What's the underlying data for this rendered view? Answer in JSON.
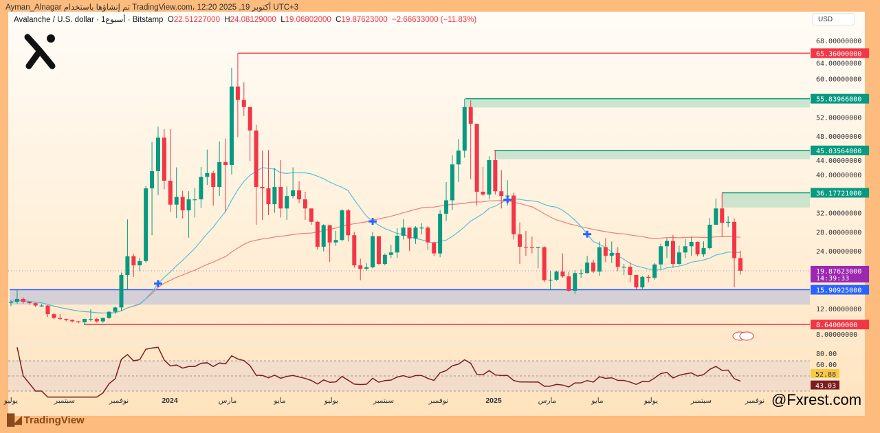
{
  "header": {
    "attribution": "Ayman_Alnagar تم إنشاؤها باستخدام TradingView.com، 12:20 2025 ,19 أكتوبر UTC+3"
  },
  "symbol": {
    "name": "Avalanche / U.S. dollar · 1أسبوع · Bitstamp",
    "o_label": "O",
    "o": "22.51227000",
    "h_label": "H",
    "h": "24.08129000",
    "l_label": "L",
    "l": "19.06802000",
    "c_label": "C",
    "c": "19.87623000",
    "change": "−2.66633000 (−11.83%)"
  },
  "currency": "USD",
  "watermark": "@Fxrest.com",
  "brand": "TradingView",
  "colors": {
    "up": "#089981",
    "down": "#F23645",
    "ma_fast": "#4FC3D9",
    "ma_slow": "#F07A7A",
    "rsi": "#7B1E22",
    "frame": "#FDBB7D"
  },
  "chart_data": {
    "type": "candlestick",
    "title": "Avalanche / U.S. dollar · 1W · Bitstamp",
    "ylim": [
      4,
      70
    ],
    "y_ticks": [
      "68.00000000",
      "64.00000000",
      "60.00000000",
      "52.00000000",
      "48.00000000",
      "44.00000000",
      "40.00000000",
      "32.00000000",
      "28.00000000",
      "24.00000000",
      "12.00000000",
      "8.00000000"
    ],
    "x_ticks": [
      "يوليو",
      "سبتمبر",
      "نوفمبر",
      "2024",
      "مارس",
      "مايو",
      "يوليو",
      "سبتمبر",
      "نوفمبر",
      "2025",
      "مارس",
      "مايو",
      "يوليو",
      "سبتمبر",
      "نوفمبر"
    ],
    "candles_ohlc": [
      [
        13.2,
        13.8,
        12.5,
        13.4
      ],
      [
        13.4,
        15.9,
        13.0,
        14.0
      ],
      [
        14.0,
        14.3,
        13.0,
        13.4
      ],
      [
        13.4,
        13.5,
        12.8,
        13.1
      ],
      [
        13.1,
        13.2,
        12.3,
        12.6
      ],
      [
        12.6,
        12.9,
        12.3,
        12.6
      ],
      [
        12.6,
        12.7,
        10.2,
        10.8
      ],
      [
        10.8,
        11.1,
        9.7,
        10.0
      ],
      [
        10.0,
        10.8,
        9.6,
        9.8
      ],
      [
        9.8,
        9.9,
        9.3,
        9.6
      ],
      [
        9.6,
        9.7,
        9.1,
        9.3
      ],
      [
        9.3,
        9.4,
        8.9,
        9.1
      ],
      [
        9.1,
        9.9,
        8.64,
        9.8
      ],
      [
        9.8,
        11.8,
        9.3,
        9.8
      ],
      [
        9.8,
        10.0,
        9.0,
        9.3
      ],
      [
        9.3,
        10.1,
        9.0,
        10.0
      ],
      [
        10.0,
        11.5,
        9.8,
        11.3
      ],
      [
        11.3,
        12.4,
        10.9,
        12.2
      ],
      [
        12.2,
        19.5,
        11.4,
        19.0
      ],
      [
        19.0,
        30.6,
        15.9,
        22.9
      ],
      [
        22.9,
        23.4,
        18.6,
        21.0
      ],
      [
        21.0,
        22.6,
        19.8,
        21.9
      ],
      [
        21.9,
        37.6,
        21.6,
        37.1
      ],
      [
        37.1,
        46.8,
        27.3,
        40.7
      ],
      [
        40.7,
        50.0,
        35.7,
        47.7
      ],
      [
        47.7,
        49.5,
        36.9,
        38.7
      ],
      [
        38.7,
        49.5,
        32.2,
        33.7
      ],
      [
        33.7,
        41.5,
        30.9,
        35.3
      ],
      [
        35.3,
        36.6,
        30.8,
        32.5
      ],
      [
        32.5,
        36.5,
        26.8,
        34.8
      ],
      [
        34.8,
        37.2,
        31.0,
        34.8
      ],
      [
        34.8,
        41.6,
        33.0,
        39.5
      ],
      [
        39.5,
        45.2,
        37.8,
        40.3
      ],
      [
        40.3,
        40.8,
        33.5,
        37.4
      ],
      [
        37.4,
        46.9,
        35.5,
        42.6
      ],
      [
        42.6,
        47.5,
        32.2,
        42.0
      ],
      [
        42.0,
        62.3,
        40.0,
        58.4
      ],
      [
        58.4,
        65.36,
        47.8,
        55.6
      ],
      [
        55.6,
        59.3,
        52.2,
        54.1
      ],
      [
        54.1,
        53.8,
        42.8,
        49.2
      ],
      [
        49.2,
        50.4,
        29.5,
        37.4
      ],
      [
        37.4,
        45.0,
        30.5,
        37.1
      ],
      [
        37.1,
        45.1,
        31.5,
        33.8
      ],
      [
        33.8,
        41.4,
        32.0,
        37.4
      ],
      [
        37.4,
        43.0,
        31.0,
        32.9
      ],
      [
        32.9,
        37.5,
        30.5,
        35.5
      ],
      [
        35.5,
        41.5,
        35.0,
        36.7
      ],
      [
        36.7,
        38.6,
        34.0,
        34.8
      ],
      [
        34.8,
        36.4,
        30.5,
        32.9
      ],
      [
        32.9,
        32.9,
        29.5,
        30.1
      ],
      [
        30.1,
        30.3,
        24.3,
        24.9
      ],
      [
        24.9,
        29.6,
        23.9,
        29.4
      ],
      [
        29.4,
        29.4,
        21.7,
        25.8
      ],
      [
        25.8,
        28.2,
        25.1,
        26.3
      ],
      [
        26.3,
        32.8,
        26.0,
        32.5
      ],
      [
        32.5,
        32.8,
        26.0,
        27.3
      ],
      [
        27.3,
        28.0,
        20.5,
        21.0
      ],
      [
        21.0,
        22.4,
        17.9,
        20.3
      ],
      [
        20.3,
        21.5,
        19.9,
        20.6
      ],
      [
        20.6,
        28.0,
        20.4,
        27.1
      ],
      [
        27.1,
        27.1,
        21.1,
        21.3
      ],
      [
        21.3,
        23.5,
        21.0,
        23.2
      ],
      [
        23.2,
        25.3,
        22.6,
        23.7
      ],
      [
        23.7,
        28.8,
        22.5,
        27.2
      ],
      [
        27.2,
        30.7,
        26.4,
        28.9
      ],
      [
        28.9,
        28.9,
        24.0,
        26.6
      ],
      [
        26.6,
        29.2,
        25.5,
        28.9
      ],
      [
        28.9,
        29.8,
        27.5,
        28.9
      ],
      [
        28.9,
        29.2,
        24.2,
        25.8
      ],
      [
        25.8,
        26.0,
        22.9,
        23.5
      ],
      [
        23.5,
        32.6,
        22.7,
        31.8
      ],
      [
        31.8,
        38.4,
        30.3,
        34.6
      ],
      [
        34.6,
        44.0,
        32.6,
        42.1
      ],
      [
        42.1,
        47.4,
        38.4,
        45.0
      ],
      [
        45.0,
        55.84,
        43.5,
        54.1
      ],
      [
        54.1,
        55.5,
        39.0,
        50.6
      ],
      [
        50.6,
        49.1,
        33.5,
        36.4
      ],
      [
        36.4,
        41.6,
        35.5,
        35.8
      ],
      [
        35.8,
        43.8,
        34.8,
        43.0
      ],
      [
        43.0,
        45.04,
        35.8,
        36.5
      ],
      [
        36.5,
        40.9,
        32.9,
        35.5
      ],
      [
        35.5,
        38.8,
        33.5,
        35.6
      ],
      [
        35.6,
        36.2,
        26.4,
        27.5
      ],
      [
        27.5,
        30.0,
        21.3,
        24.9
      ],
      [
        24.9,
        28.2,
        23.0,
        24.8
      ],
      [
        24.8,
        27.0,
        23.5,
        24.7
      ],
      [
        24.7,
        24.9,
        20.4,
        24.8
      ],
      [
        24.8,
        25.0,
        17.5,
        17.9
      ],
      [
        17.9,
        19.8,
        15.9,
        18.0
      ],
      [
        18.0,
        19.9,
        17.8,
        19.7
      ],
      [
        19.7,
        23.5,
        18.4,
        18.7
      ],
      [
        18.7,
        19.7,
        15.5,
        15.7
      ],
      [
        15.7,
        20.0,
        15.0,
        19.4
      ],
      [
        19.4,
        20.2,
        18.4,
        19.4
      ],
      [
        19.4,
        23.0,
        19.3,
        21.6
      ],
      [
        21.6,
        22.2,
        19.4,
        19.7
      ],
      [
        19.7,
        26.0,
        18.8,
        24.8
      ],
      [
        24.8,
        26.7,
        21.7,
        23.0
      ],
      [
        23.0,
        26.0,
        21.5,
        23.6
      ],
      [
        23.6,
        24.8,
        19.8,
        20.7
      ],
      [
        20.7,
        21.3,
        19.0,
        20.7
      ],
      [
        20.7,
        21.6,
        17.5,
        19.0
      ],
      [
        19.0,
        19.0,
        15.9,
        16.4
      ],
      [
        16.4,
        18.8,
        16.1,
        18.6
      ],
      [
        18.6,
        19.0,
        17.5,
        18.4
      ],
      [
        18.4,
        21.5,
        18.0,
        21.2
      ],
      [
        21.2,
        25.5,
        20.2,
        25.0
      ],
      [
        25.0,
        26.7,
        22.6,
        26.1
      ],
      [
        26.1,
        27.4,
        20.5,
        21.3
      ],
      [
        21.3,
        25.1,
        21.1,
        23.7
      ],
      [
        23.7,
        26.5,
        22.5,
        25.0
      ],
      [
        25.0,
        27.0,
        23.0,
        25.9
      ],
      [
        25.9,
        26.0,
        22.9,
        23.3
      ],
      [
        23.3,
        26.0,
        22.8,
        24.6
      ],
      [
        24.6,
        30.9,
        24.3,
        29.5
      ],
      [
        29.5,
        35.0,
        30.5,
        32.9
      ],
      [
        32.9,
        36.18,
        27.0,
        29.9
      ],
      [
        29.9,
        31.3,
        29.0,
        30.1
      ],
      [
        30.1,
        30.8,
        16.4,
        22.51
      ],
      [
        22.51,
        24.08,
        19.07,
        19.88
      ]
    ],
    "levels": [
      {
        "label": "65.36000000",
        "value": 65.36,
        "color": "#F23645",
        "type": "resistance"
      },
      {
        "label": "55.83966000",
        "value": 55.83966,
        "zone_low": 54.0,
        "color": "#089981",
        "type": "supply"
      },
      {
        "label": "45.03564000",
        "value": 45.03564,
        "zone_low": 43.2,
        "color": "#089981",
        "type": "supply"
      },
      {
        "label": "36.17721000",
        "value": 36.17721,
        "zone_low": 33.1,
        "color": "#089981",
        "type": "supply"
      },
      {
        "label": "15.90925000",
        "value": 15.90925,
        "zone_low": 12.8,
        "color": "#2962FF",
        "type": "support"
      },
      {
        "label": "8.64000000",
        "value": 8.64,
        "color": "#F23645",
        "type": "support"
      }
    ],
    "last_price": {
      "label": "19.87623000",
      "countdown": "14:39:33",
      "value": 19.87623
    },
    "ma_fast_period": 20,
    "ma_slow_period": 50,
    "cross_markers_candle_index": [
      24,
      59,
      81,
      94
    ],
    "rsi": {
      "period": 14,
      "ticks": [
        "80.00",
        "60.00"
      ],
      "levels": [
        70,
        50,
        30
      ],
      "value_label": "43.03",
      "ma_label": "52.88",
      "ylim": [
        20,
        90
      ]
    }
  }
}
